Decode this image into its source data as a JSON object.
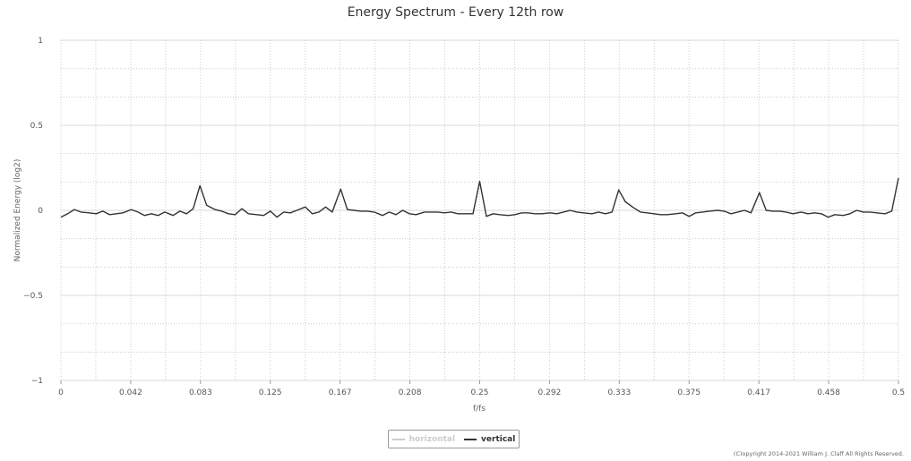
{
  "chart_data": {
    "type": "line",
    "title": "Energy Spectrum - Every 12th row",
    "xlabel": "f/fs",
    "ylabel": "Normalized Energy (log2)",
    "xlim": [
      0,
      0.5
    ],
    "ylim": [
      -1,
      1
    ],
    "x_tick_labels": [
      "0",
      "0.042",
      "0.083",
      "0.125",
      "0.167",
      "0.208",
      "0.25",
      "0.292",
      "0.333",
      "0.375",
      "0.417",
      "0.458",
      "0.5"
    ],
    "y_tick_labels": [
      "1",
      "0.5",
      "0",
      "−0.5",
      "−1"
    ],
    "y_tick_values": [
      1,
      0.5,
      0,
      -0.5,
      -1
    ],
    "grid": true,
    "legend_position": "bottom-center",
    "series": [
      {
        "name": "horizontal",
        "visible": false,
        "color": "#cccccc",
        "x": [],
        "y": []
      },
      {
        "name": "vertical",
        "visible": true,
        "color": "#333333",
        "x": [
          0,
          0.004,
          0.008,
          0.012,
          0.017,
          0.021,
          0.025,
          0.029,
          0.033,
          0.037,
          0.042,
          0.046,
          0.05,
          0.054,
          0.058,
          0.062,
          0.067,
          0.071,
          0.075,
          0.079,
          0.083,
          0.087,
          0.092,
          0.096,
          0.1,
          0.104,
          0.108,
          0.112,
          0.117,
          0.121,
          0.125,
          0.129,
          0.133,
          0.137,
          0.142,
          0.146,
          0.15,
          0.154,
          0.158,
          0.162,
          0.167,
          0.171,
          0.175,
          0.179,
          0.183,
          0.187,
          0.192,
          0.196,
          0.2,
          0.204,
          0.208,
          0.212,
          0.217,
          0.221,
          0.225,
          0.229,
          0.233,
          0.237,
          0.242,
          0.246,
          0.25,
          0.254,
          0.258,
          0.262,
          0.267,
          0.271,
          0.275,
          0.279,
          0.283,
          0.287,
          0.292,
          0.296,
          0.3,
          0.304,
          0.308,
          0.312,
          0.317,
          0.321,
          0.325,
          0.329,
          0.333,
          0.337,
          0.342,
          0.346,
          0.35,
          0.354,
          0.358,
          0.362,
          0.367,
          0.371,
          0.375,
          0.379,
          0.383,
          0.387,
          0.392,
          0.396,
          0.4,
          0.404,
          0.408,
          0.412,
          0.417,
          0.421,
          0.425,
          0.429,
          0.433,
          0.437,
          0.442,
          0.446,
          0.45,
          0.454,
          0.458,
          0.462,
          0.467,
          0.471,
          0.475,
          0.479,
          0.483,
          0.487,
          0.492,
          0.496,
          0.5
        ],
        "y": [
          -0.04,
          -0.02,
          0.005,
          -0.01,
          -0.015,
          -0.02,
          -0.005,
          -0.025,
          -0.02,
          -0.015,
          0.005,
          -0.01,
          -0.03,
          -0.02,
          -0.03,
          -0.01,
          -0.03,
          -0.005,
          -0.02,
          0.01,
          0.145,
          0.03,
          0.005,
          -0.005,
          -0.02,
          -0.025,
          0.01,
          -0.02,
          -0.025,
          -0.03,
          -0.005,
          -0.04,
          -0.01,
          -0.015,
          0.005,
          0.02,
          -0.02,
          -0.01,
          0.02,
          -0.01,
          0.125,
          0.005,
          0.0,
          -0.005,
          -0.005,
          -0.01,
          -0.03,
          -0.01,
          -0.025,
          0.0,
          -0.02,
          -0.025,
          -0.01,
          -0.01,
          -0.01,
          -0.015,
          -0.01,
          -0.02,
          -0.02,
          -0.02,
          0.17,
          -0.035,
          -0.02,
          -0.025,
          -0.03,
          -0.025,
          -0.015,
          -0.015,
          -0.02,
          -0.02,
          -0.015,
          -0.02,
          -0.01,
          0.0,
          -0.01,
          -0.015,
          -0.02,
          -0.01,
          -0.02,
          -0.01,
          0.12,
          0.05,
          0.015,
          -0.01,
          -0.015,
          -0.02,
          -0.025,
          -0.025,
          -0.02,
          -0.015,
          -0.035,
          -0.015,
          -0.01,
          -0.005,
          0.0,
          -0.005,
          -0.02,
          -0.01,
          0.0,
          -0.015,
          0.105,
          0.0,
          -0.005,
          -0.005,
          -0.01,
          -0.02,
          -0.01,
          -0.02,
          -0.015,
          -0.02,
          -0.04,
          -0.025,
          -0.03,
          -0.02,
          0.0,
          -0.01,
          -0.01,
          -0.015,
          -0.02,
          -0.005,
          0.19
        ]
      }
    ]
  },
  "copyright": "(C)opyright 2014-2021 William J. Claff All Rights Reserved."
}
